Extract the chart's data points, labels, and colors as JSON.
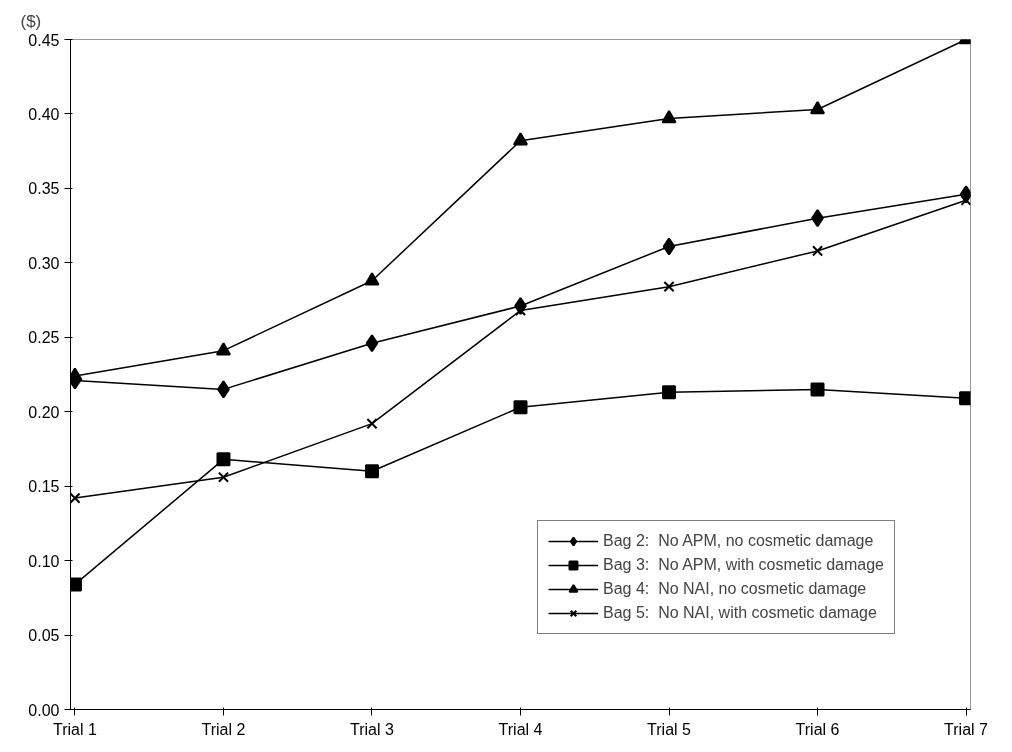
{
  "chart_data": {
    "type": "line",
    "ylabel": "($)",
    "categories": [
      "Trial 1",
      "Trial 2",
      "Trial 3",
      "Trial 4",
      "Trial 5",
      "Trial 6",
      "Trial 7"
    ],
    "series": [
      {
        "name": "Bag 2:  No APM, no cosmetic damage",
        "color": "#000000",
        "marker": "diamond",
        "values": [
          0.221,
          0.215,
          0.246,
          0.271,
          0.311,
          0.33,
          0.346
        ]
      },
      {
        "name": "Bag 3:  No APM, with cosmetic damage",
        "color": "#000000",
        "marker": "square",
        "values": [
          0.084,
          0.168,
          0.16,
          0.203,
          0.213,
          0.215,
          0.209
        ]
      },
      {
        "name": "Bag 4:  No NAI, no cosmetic damage",
        "color": "#000000",
        "marker": "triangle",
        "values": [
          0.224,
          0.241,
          0.288,
          0.382,
          0.397,
          0.403,
          0.45
        ]
      },
      {
        "name": "Bag 5:  No NAI, with cosmetic damage",
        "color": "#000000",
        "marker": "cross",
        "values": [
          0.142,
          0.156,
          0.192,
          0.268,
          0.284,
          0.308,
          0.342
        ]
      }
    ],
    "ylim": [
      0,
      0.45
    ],
    "yticks": [
      {
        "value": 0,
        "label": "0.00"
      },
      {
        "value": 0.05,
        "label": "0.05"
      },
      {
        "value": 0.1,
        "label": "0.10"
      },
      {
        "value": 0.15,
        "label": "0.15"
      },
      {
        "value": 0.2,
        "label": "0.20"
      },
      {
        "value": 0.25,
        "label": "0.25"
      },
      {
        "value": 0.3,
        "label": "0.30"
      },
      {
        "value": 0.35,
        "label": "0.35"
      },
      {
        "value": 0.4,
        "label": "0.40"
      },
      {
        "value": 0.45,
        "label": "0.45"
      }
    ],
    "legend": "bottom right",
    "grid": false,
    "line_style": "solid"
  }
}
